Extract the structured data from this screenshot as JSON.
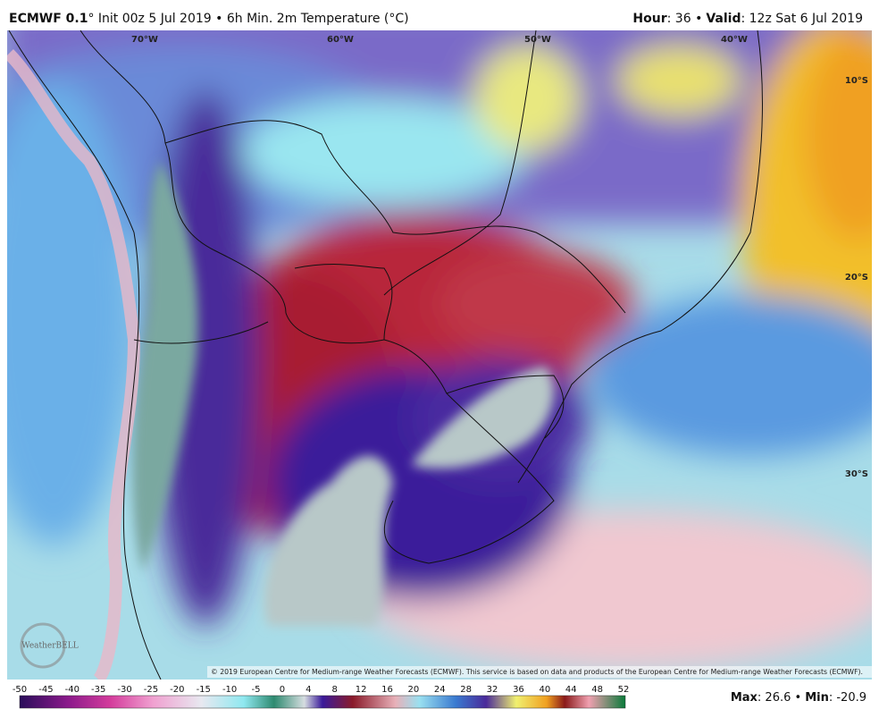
{
  "header": {
    "model": "ECMWF 0.1",
    "subtitle": "° Init 00z 5 Jul 2019 • 6h Min. 2m Temperature (°C)",
    "hour_label": "Hour",
    "hour_text": ": 36 •",
    "valid_label": "Valid",
    "valid_text": ": 12z Sat 6 Jul 2019"
  },
  "map": {
    "longitudes": [
      "70°W",
      "60°W",
      "50°W",
      "40°W"
    ],
    "latitudes": [
      "10°S",
      "20°S",
      "30°S"
    ],
    "logo": "WeatherBELL",
    "copyright": "© 2019 European Centre for Medium-range Weather Forecasts (ECMWF). This service is based on data and products of the European Centre for Medium-range Weather Forecasts (ECMWF)."
  },
  "colorbar": {
    "labels": [
      -50,
      -45,
      -40,
      -35,
      -30,
      -25,
      -20,
      -15,
      -10,
      -5,
      0,
      4,
      8,
      12,
      16,
      20,
      24,
      28,
      32,
      36,
      40,
      44,
      48,
      52
    ]
  },
  "footer": {
    "max_label": "Max",
    "max_text": ": 26.6 •",
    "min_label": "Min",
    "min_text": ": -20.9"
  }
}
